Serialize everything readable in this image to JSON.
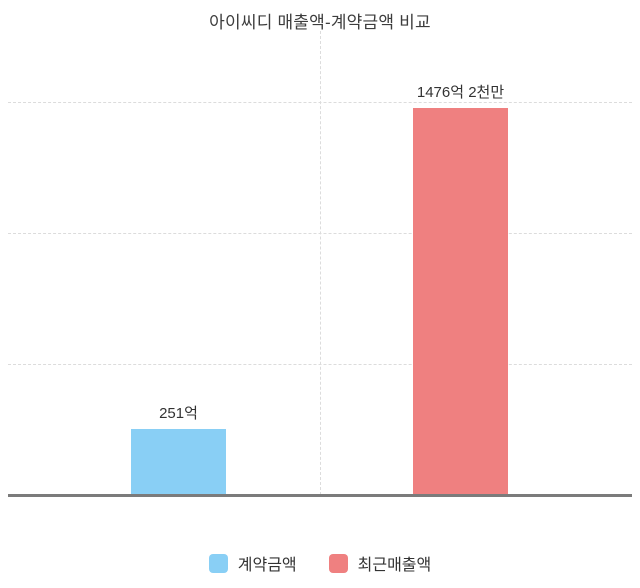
{
  "chart_data": {
    "type": "bar",
    "title": "아이씨디 매출액-계약금액 비교",
    "categories": [
      "계약금액",
      "최근매출액"
    ],
    "values": [
      251,
      1476.2
    ],
    "value_labels": [
      "251억",
      "1476억 2천만"
    ],
    "unit": "억",
    "xlabel": "",
    "ylabel": "",
    "ylim": [
      0,
      1500
    ],
    "gridline_values": [
      500,
      1000,
      1500
    ],
    "grid": "horizontal-dashed",
    "legend_position": "bottom",
    "series_colors": [
      "#89CFF5",
      "#EF8080"
    ]
  },
  "legend": {
    "items": [
      {
        "label": "계약금액",
        "color": "#89CFF5"
      },
      {
        "label": "최근매출액",
        "color": "#EF8080"
      }
    ]
  },
  "colors": {
    "bar_blue": "#89CFF5",
    "bar_red": "#EF8080",
    "gridline": "#DCDCDC",
    "axis_line": "#7B7B7B",
    "title_text": "#3D3D3D",
    "label_text": "#333333"
  }
}
